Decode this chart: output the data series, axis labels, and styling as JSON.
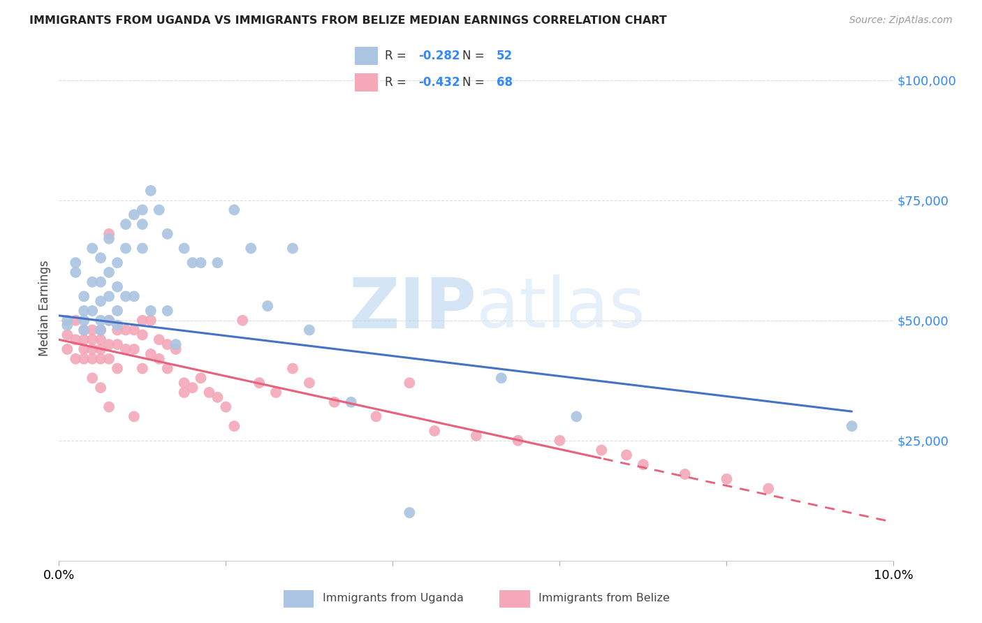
{
  "title": "IMMIGRANTS FROM UGANDA VS IMMIGRANTS FROM BELIZE MEDIAN EARNINGS CORRELATION CHART",
  "source": "Source: ZipAtlas.com",
  "ylabel": "Median Earnings",
  "y_ticks": [
    0,
    25000,
    50000,
    75000,
    100000
  ],
  "y_tick_labels": [
    "",
    "$25,000",
    "$50,000",
    "$75,000",
    "$100,000"
  ],
  "xlim": [
    0.0,
    0.1
  ],
  "ylim": [
    0,
    105000
  ],
  "uganda_R": "-0.282",
  "uganda_N": "52",
  "belize_R": "-0.432",
  "belize_N": "68",
  "uganda_color": "#aac4e2",
  "belize_color": "#f4a8b8",
  "uganda_line_color": "#4472c4",
  "belize_line_color": "#e8607a",
  "watermark_zip": "ZIP",
  "watermark_atlas": "atlas",
  "uganda_scatter_x": [
    0.001,
    0.001,
    0.002,
    0.002,
    0.003,
    0.003,
    0.003,
    0.003,
    0.004,
    0.004,
    0.004,
    0.005,
    0.005,
    0.005,
    0.005,
    0.005,
    0.006,
    0.006,
    0.006,
    0.006,
    0.007,
    0.007,
    0.007,
    0.007,
    0.008,
    0.008,
    0.008,
    0.009,
    0.009,
    0.01,
    0.01,
    0.01,
    0.011,
    0.011,
    0.012,
    0.013,
    0.013,
    0.014,
    0.015,
    0.016,
    0.017,
    0.019,
    0.021,
    0.023,
    0.025,
    0.028,
    0.03,
    0.035,
    0.042,
    0.053,
    0.062,
    0.095
  ],
  "uganda_scatter_y": [
    50000,
    49000,
    62000,
    60000,
    55000,
    52000,
    50000,
    48000,
    65000,
    58000,
    52000,
    63000,
    58000,
    54000,
    50000,
    48000,
    67000,
    60000,
    55000,
    50000,
    62000,
    57000,
    52000,
    49000,
    70000,
    65000,
    55000,
    72000,
    55000,
    73000,
    70000,
    65000,
    77000,
    52000,
    73000,
    68000,
    52000,
    45000,
    65000,
    62000,
    62000,
    62000,
    73000,
    65000,
    53000,
    65000,
    48000,
    33000,
    10000,
    38000,
    30000,
    28000
  ],
  "belize_scatter_x": [
    0.001,
    0.001,
    0.002,
    0.002,
    0.002,
    0.003,
    0.003,
    0.003,
    0.003,
    0.004,
    0.004,
    0.004,
    0.004,
    0.004,
    0.005,
    0.005,
    0.005,
    0.005,
    0.005,
    0.006,
    0.006,
    0.006,
    0.006,
    0.006,
    0.007,
    0.007,
    0.007,
    0.008,
    0.008,
    0.009,
    0.009,
    0.009,
    0.01,
    0.01,
    0.01,
    0.011,
    0.011,
    0.012,
    0.012,
    0.013,
    0.013,
    0.014,
    0.015,
    0.015,
    0.016,
    0.017,
    0.018,
    0.019,
    0.02,
    0.021,
    0.022,
    0.024,
    0.026,
    0.028,
    0.03,
    0.033,
    0.038,
    0.042,
    0.045,
    0.05,
    0.055,
    0.06,
    0.065,
    0.068,
    0.07,
    0.075,
    0.08,
    0.085
  ],
  "belize_scatter_y": [
    47000,
    44000,
    50000,
    46000,
    42000,
    48000,
    46000,
    44000,
    42000,
    48000,
    46000,
    44000,
    42000,
    38000,
    48000,
    46000,
    44000,
    42000,
    36000,
    68000,
    50000,
    45000,
    42000,
    32000,
    48000,
    45000,
    40000,
    48000,
    44000,
    48000,
    44000,
    30000,
    50000,
    47000,
    40000,
    50000,
    43000,
    46000,
    42000,
    45000,
    40000,
    44000,
    37000,
    35000,
    36000,
    38000,
    35000,
    34000,
    32000,
    28000,
    50000,
    37000,
    35000,
    40000,
    37000,
    33000,
    30000,
    37000,
    27000,
    26000,
    25000,
    25000,
    23000,
    22000,
    20000,
    18000,
    17000,
    15000
  ]
}
